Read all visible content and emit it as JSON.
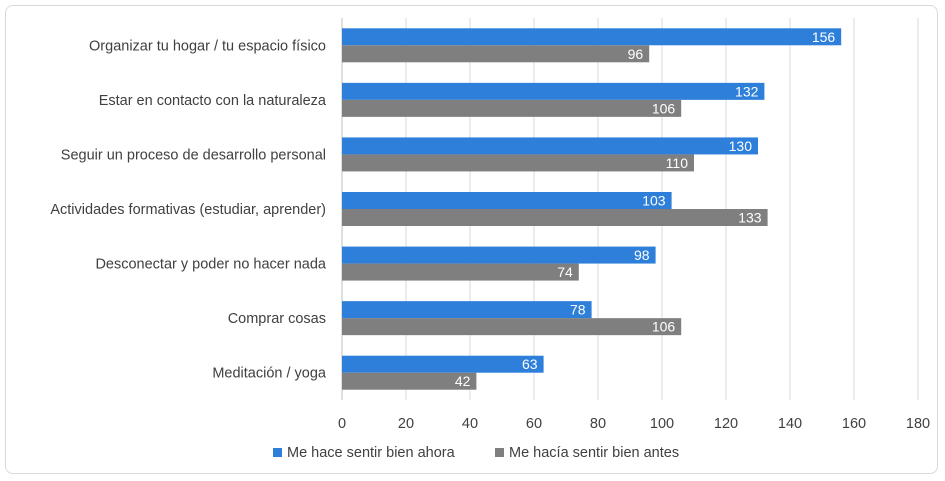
{
  "chart_data": {
    "type": "bar",
    "orientation": "horizontal",
    "title": "",
    "xlabel": "",
    "ylabel": "",
    "categories": [
      "Organizar tu hogar / tu espacio físico",
      "Estar en contacto con la naturaleza",
      "Seguir un proceso de desarrollo personal",
      "Actividades formativas (estudiar, aprender)",
      "Desconectar y poder no hacer nada",
      "Comprar cosas",
      "Meditación / yoga"
    ],
    "series": [
      {
        "name": "Me hace sentir bien ahora",
        "color": "#2e7fd9",
        "values": [
          156,
          132,
          130,
          103,
          98,
          78,
          63
        ]
      },
      {
        "name": "Me hacía sentir bien antes",
        "color": "#7f7f7f",
        "values": [
          96,
          106,
          110,
          133,
          74,
          106,
          42
        ]
      }
    ],
    "xlim": [
      0,
      180
    ],
    "xticks": [
      "0",
      "20",
      "40",
      "60",
      "80",
      "100",
      "120",
      "140",
      "160",
      "180"
    ],
    "grid": "vertical",
    "legend_position": "bottom",
    "data_labels": true
  }
}
